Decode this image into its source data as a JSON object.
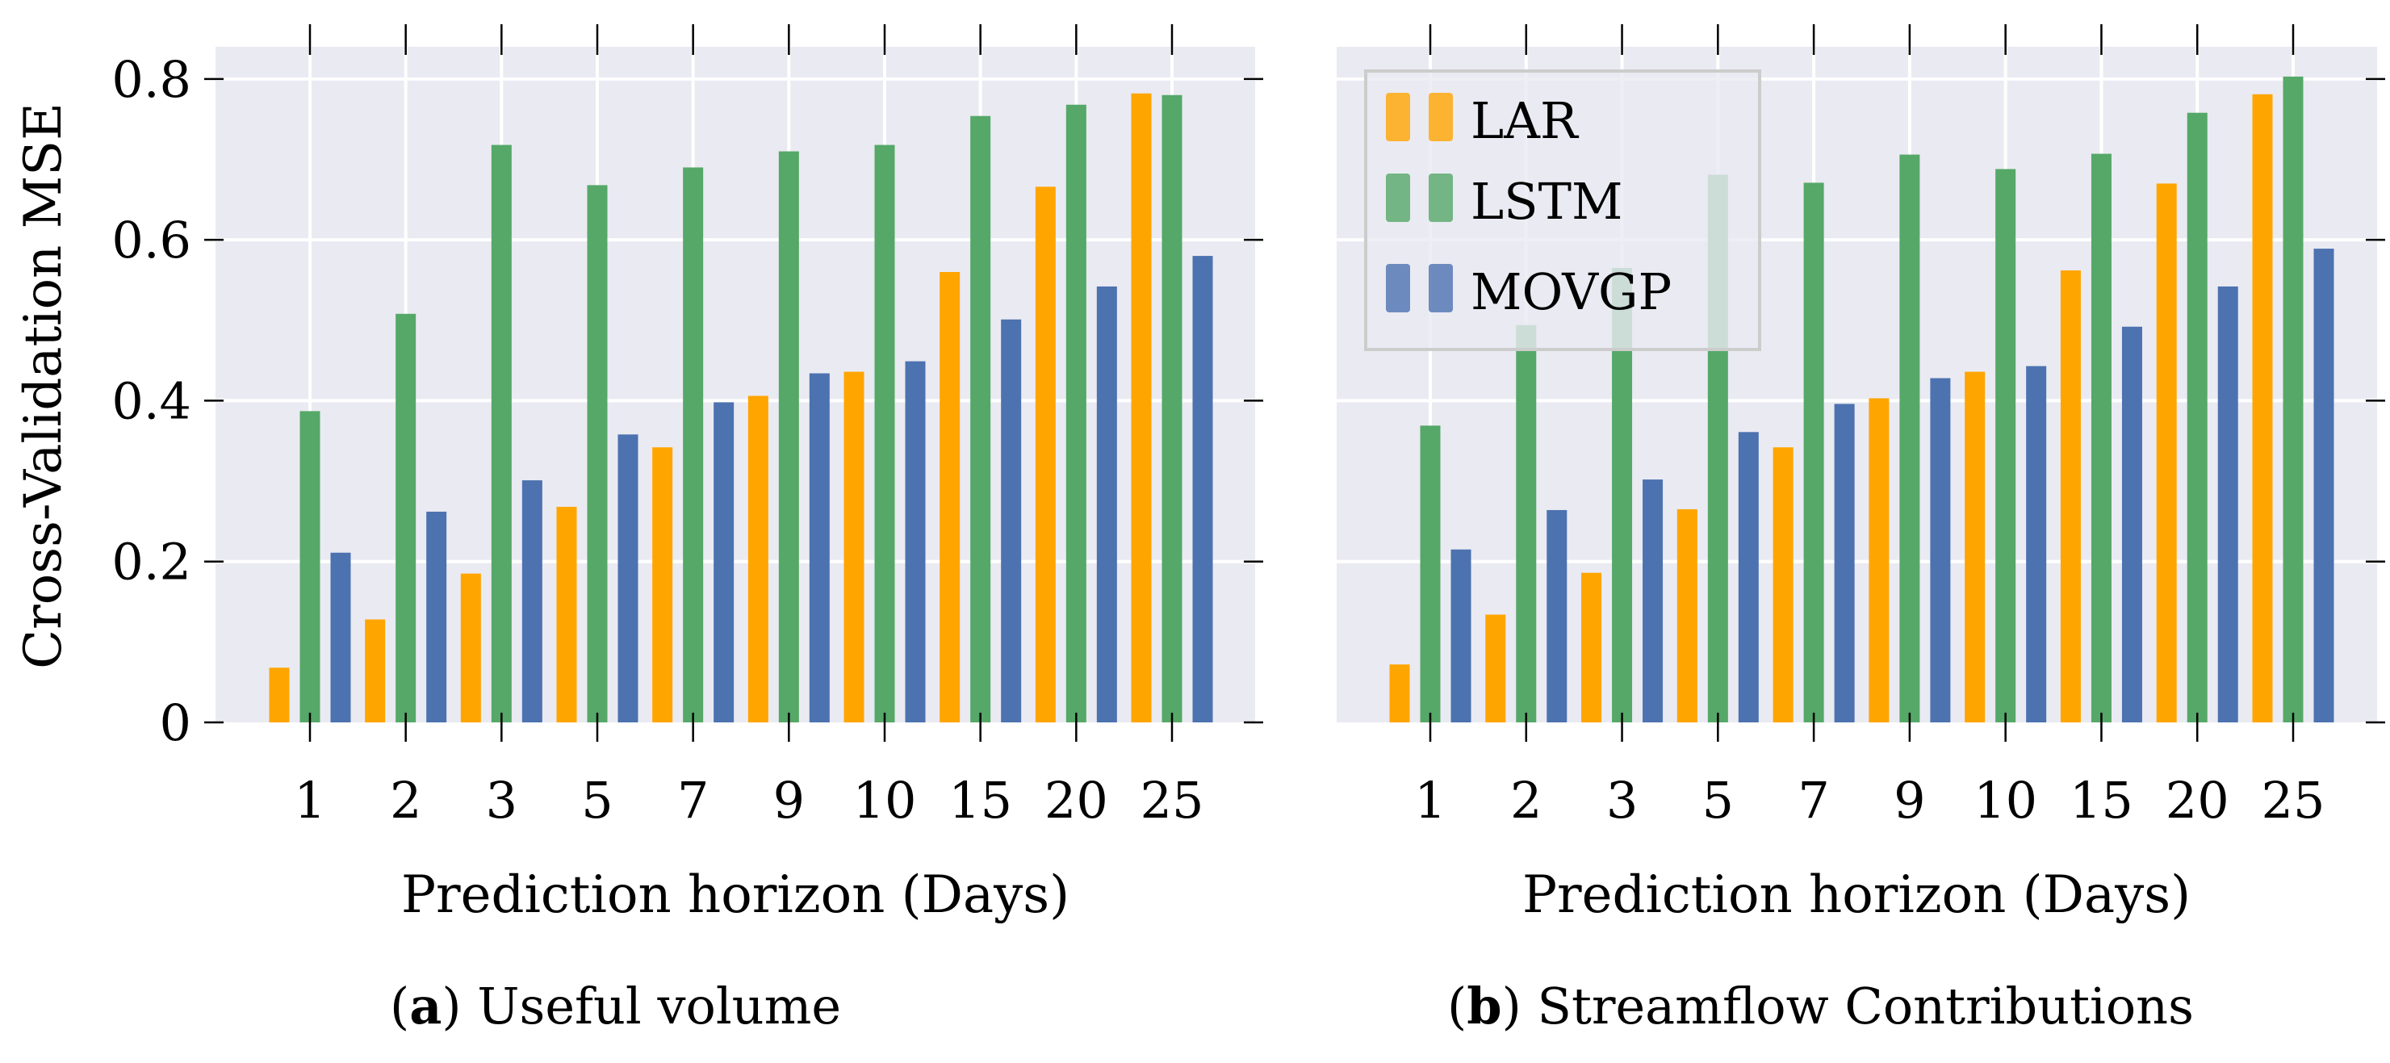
{
  "colors": {
    "LAR": "#FFA500",
    "LSTM": "#55A868",
    "MOVGP": "#4C72B0",
    "background": "#EAEAF2",
    "grid": "#FFFFFF"
  },
  "shared": {
    "ylabel": "Cross-Validation MSE",
    "xlabel": "Prediction horizon (Days)",
    "legend": [
      "LAR",
      "LSTM",
      "MOVGP"
    ]
  },
  "chart_data": [
    {
      "type": "bar",
      "panel": "a",
      "caption_letter": "a",
      "caption_text": "Useful volume",
      "title": "",
      "xlabel": "Prediction horizon (Days)",
      "ylabel": "Cross-Validation MSE",
      "ylim": [
        0,
        0.84
      ],
      "yticks": [
        "0",
        "0.2",
        "0.4",
        "0.6",
        "0.8"
      ],
      "categories": [
        "1",
        "2",
        "3",
        "5",
        "7",
        "9",
        "10",
        "15",
        "20",
        "25"
      ],
      "series": [
        {
          "name": "LAR",
          "values": [
            0.068,
            0.128,
            0.185,
            0.268,
            0.342,
            0.406,
            0.436,
            0.56,
            0.666,
            0.782
          ]
        },
        {
          "name": "LSTM",
          "values": [
            0.387,
            0.508,
            0.718,
            0.668,
            0.69,
            0.71,
            0.718,
            0.754,
            0.768,
            0.78
          ]
        },
        {
          "name": "MOVGP",
          "values": [
            0.211,
            0.262,
            0.301,
            0.358,
            0.398,
            0.434,
            0.449,
            0.501,
            0.542,
            0.58
          ]
        }
      ],
      "legend": "none",
      "grid": true
    },
    {
      "type": "bar",
      "panel": "b",
      "caption_letter": "b",
      "caption_text": "Streamflow Contributions",
      "title": "",
      "xlabel": "Prediction horizon (Days)",
      "ylabel": "",
      "ylim": [
        0,
        0.84
      ],
      "categories": [
        "1",
        "2",
        "3",
        "5",
        "7",
        "9",
        "10",
        "15",
        "20",
        "25"
      ],
      "series": [
        {
          "name": "LAR",
          "values": [
            0.072,
            0.134,
            0.186,
            0.265,
            0.342,
            0.403,
            0.436,
            0.562,
            0.67,
            0.781
          ]
        },
        {
          "name": "LSTM",
          "values": [
            0.369,
            0.494,
            0.565,
            0.681,
            0.671,
            0.706,
            0.688,
            0.707,
            0.758,
            0.803
          ]
        },
        {
          "name": "MOVGP",
          "values": [
            0.215,
            0.264,
            0.302,
            0.361,
            0.396,
            0.428,
            0.443,
            0.492,
            0.542,
            0.589
          ]
        }
      ],
      "legend": "top-left",
      "grid": true
    }
  ]
}
